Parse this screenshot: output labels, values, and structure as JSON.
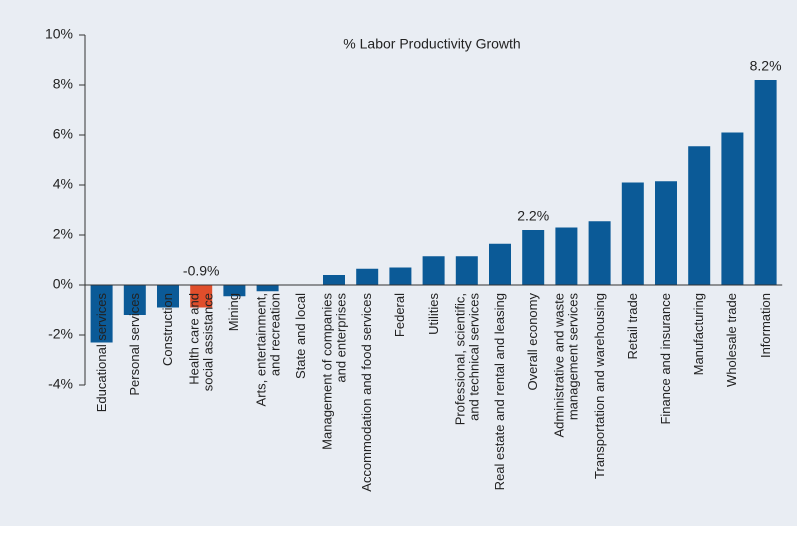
{
  "chart_data": {
    "type": "bar",
    "title": "% Labor Productivity Growth",
    "categories": [
      "Educational services",
      "Personal services",
      "Construction",
      "Health care and\nsocial assistance",
      "Mining",
      "Arts, entertainment,\nand recreation",
      "State and local",
      "Management of companies\nand enterprises",
      "Accommodation and food services",
      "Federal",
      "Utilities",
      "Professional, scientific,\nand technical services",
      "Real estate and rental and leasing",
      "Overall economy",
      "Administrative and waste\nmanagement services",
      "Transportation and warehousing",
      "Retail trade",
      "Finance and insurance",
      "Manufacturing",
      "Wholesale trade",
      "Information"
    ],
    "values": [
      -2.3,
      -1.2,
      -0.9,
      -0.9,
      -0.45,
      -0.25,
      0,
      0.4,
      0.65,
      0.7,
      1.15,
      1.15,
      1.65,
      2.2,
      2.3,
      2.55,
      4.1,
      4.15,
      5.55,
      6.1,
      8.2
    ],
    "value_labels": [
      null,
      null,
      null,
      "-0.9%",
      null,
      null,
      null,
      null,
      null,
      null,
      null,
      null,
      null,
      "2.2%",
      null,
      null,
      null,
      null,
      null,
      null,
      "8.2%"
    ],
    "colors": [
      "#0b5a97",
      "#0b5a97",
      "#0b5a97",
      "#e04e2b",
      "#0b5a97",
      "#0b5a97",
      "#0b5a97",
      "#0b5a97",
      "#0b5a97",
      "#0b5a97",
      "#0b5a97",
      "#0b5a97",
      "#0b5a97",
      "#0b5a97",
      "#0b5a97",
      "#0b5a97",
      "#0b5a97",
      "#0b5a97",
      "#0b5a97",
      "#0b5a97",
      "#0b5a97"
    ],
    "ylim": [
      -4,
      10
    ],
    "yticks": [
      {
        "value": -4,
        "label": "-4%"
      },
      {
        "value": -2,
        "label": "-2%"
      },
      {
        "value": 0,
        "label": "0%"
      },
      {
        "value": 2,
        "label": "2%"
      },
      {
        "value": 4,
        "label": "4%"
      },
      {
        "value": 6,
        "label": "6%"
      },
      {
        "value": 8,
        "label": "8%"
      },
      {
        "value": 10,
        "label": "10%"
      }
    ],
    "grid": false
  }
}
